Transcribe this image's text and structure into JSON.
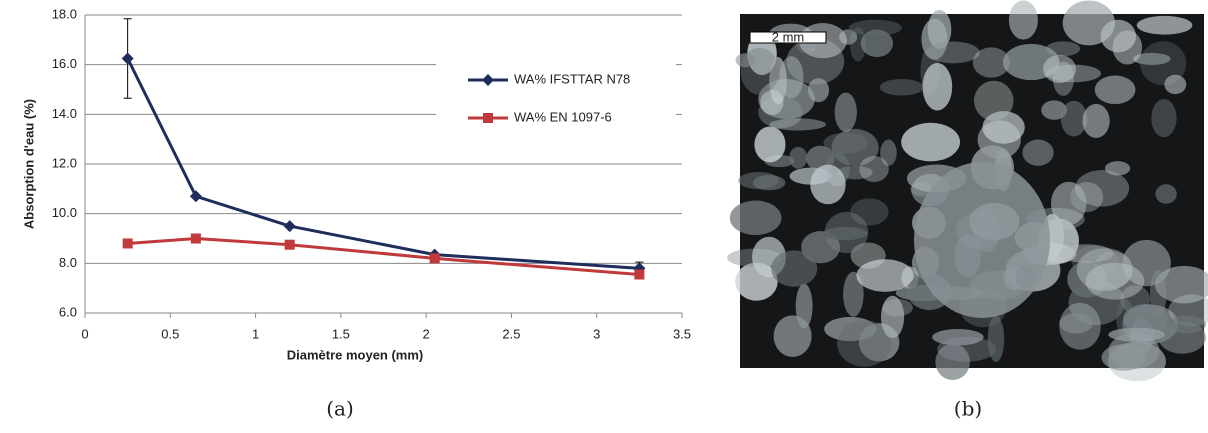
{
  "chart_data": {
    "type": "line",
    "x_label": "Diamètre moyen (mm)",
    "y_label": "Absorption d'eau (%)",
    "x": [
      0.25,
      0.65,
      1.2,
      2.05,
      3.25
    ],
    "series": [
      {
        "name": "WA% IFSTTAR N78",
        "color": "#1f2d5c",
        "marker": "diamond",
        "values": [
          16.25,
          10.7,
          9.5,
          8.35,
          7.8
        ],
        "errors": [
          1.6,
          null,
          null,
          null,
          0.25
        ]
      },
      {
        "name": "WA% EN 1097-6",
        "color": "#c0393b",
        "marker": "square",
        "values": [
          8.8,
          9.0,
          8.75,
          8.2,
          7.55
        ]
      }
    ],
    "xlim": [
      0,
      3.5
    ],
    "xticks": [
      0,
      0.5,
      1,
      1.5,
      2,
      2.5,
      3,
      3.5
    ],
    "ylim": [
      6,
      18
    ],
    "yticks": [
      {
        "value": 6,
        "label": "6.0"
      },
      {
        "value": 8,
        "label": "8.0"
      },
      {
        "value": 10,
        "label": "10.0"
      },
      {
        "value": 12,
        "label": "12.0"
      },
      {
        "value": 14,
        "label": "14.0"
      },
      {
        "value": 16,
        "label": "16.0"
      },
      {
        "value": 18,
        "label": "18.0"
      }
    ],
    "grid": true,
    "legend": "upper right"
  },
  "image": {
    "scale_label": "2 mm"
  },
  "captions": [
    "(a)",
    "(b)"
  ]
}
